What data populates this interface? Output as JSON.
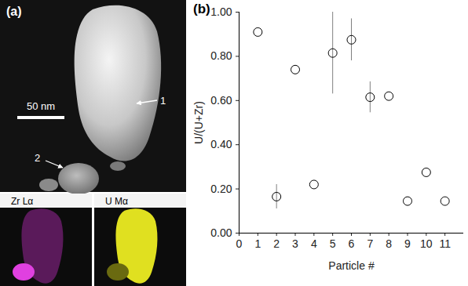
{
  "chart_data": {
    "type": "scatter",
    "title": "(b)",
    "x_label": "Particle #",
    "y_label": "U/(U+Zr)",
    "x": [
      1,
      2,
      3,
      4,
      5,
      6,
      7,
      8,
      9,
      10,
      11
    ],
    "values": [
      0.91,
      0.165,
      0.74,
      0.22,
      0.815,
      0.875,
      0.615,
      0.62,
      0.145,
      0.275,
      0.145
    ],
    "errors": [
      null,
      0.055,
      null,
      null,
      0.185,
      0.095,
      0.07,
      null,
      null,
      null,
      null
    ],
    "color": "#000000",
    "marker": "circle",
    "xlim": [
      0,
      12
    ],
    "xticks": [
      0,
      1,
      2,
      3,
      4,
      5,
      6,
      7,
      8,
      9,
      10,
      11
    ],
    "ylim": [
      0,
      1
    ],
    "yticks": [
      {
        "value": 0,
        "label": "0.00"
      },
      {
        "value": 0.2,
        "label": "0.20"
      },
      {
        "value": 0.4,
        "label": "0.40"
      },
      {
        "value": 0.6,
        "label": "0.60"
      },
      {
        "value": 0.8,
        "label": "0.80"
      },
      {
        "value": 1,
        "label": "1.00"
      }
    ],
    "grid": false
  },
  "image_panel": {
    "label": "(a)",
    "scale_bar": "50 nm",
    "markers": [
      "1",
      "2"
    ],
    "maps": [
      "Zr Lα",
      "U Mα"
    ]
  }
}
